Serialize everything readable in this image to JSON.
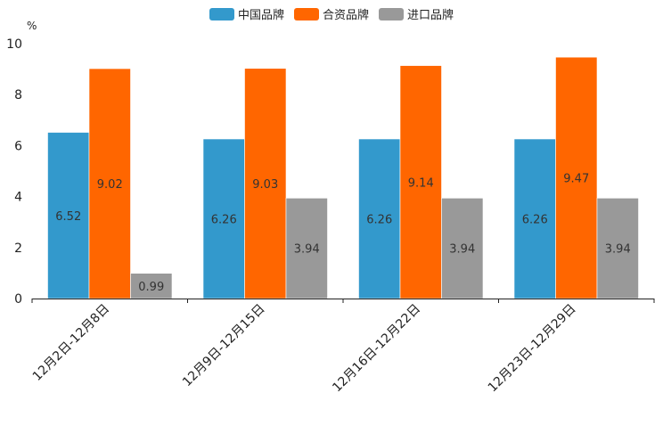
{
  "chart_data": {
    "type": "bar",
    "title": "",
    "unit_label": "%",
    "xlabel": "",
    "ylabel": "%",
    "ylim": [
      0,
      10
    ],
    "yticks": [
      0,
      2,
      4,
      6,
      8,
      10
    ],
    "legend_position": "top-center",
    "grid": false,
    "categories": [
      "12月2日-12月8日",
      "12月9日-12月15日",
      "12月16日-12月22日",
      "12月23日-12月29日"
    ],
    "series": [
      {
        "name": "中国品牌",
        "color": "#3399cc",
        "values": [
          6.52,
          6.26,
          6.26,
          6.26
        ],
        "labels": [
          "6.52",
          "6.26",
          "6.26",
          "6.26"
        ]
      },
      {
        "name": "合资品牌",
        "color": "#ff6600",
        "values": [
          9.02,
          9.03,
          9.14,
          9.47
        ],
        "labels": [
          "9.02",
          "9.03",
          "9.14",
          "9.47"
        ]
      },
      {
        "name": "进口品牌",
        "color": "#999999",
        "values": [
          0.99,
          3.94,
          3.94,
          3.94
        ],
        "labels": [
          "0.99",
          "3.94",
          "3.94",
          "3.94"
        ]
      }
    ]
  }
}
